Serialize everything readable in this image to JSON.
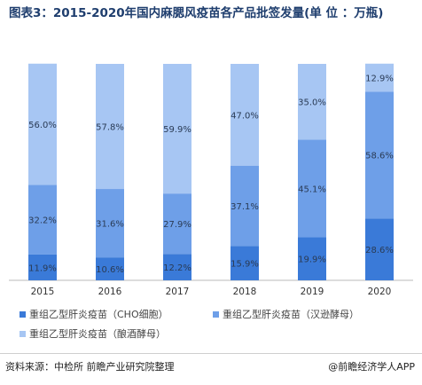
{
  "title": "图表3：2015-2020年国内麻腮风疫苗各产品批签发量(单 位 ：万瓶)",
  "chart_data": {
    "type": "bar",
    "stacked": true,
    "normalized": true,
    "categories": [
      "2015",
      "2016",
      "2017",
      "2018",
      "2019",
      "2020"
    ],
    "series": [
      {
        "name": "重组乙型肝炎疫苗（CHO细胞）",
        "color": "#3a7ad8",
        "values": [
          11.9,
          10.6,
          12.2,
          15.9,
          19.9,
          28.6
        ],
        "labels": [
          "11.9%",
          "10.6%",
          "12.2%",
          "15.9%",
          "19.9%",
          "28.6%"
        ]
      },
      {
        "name": "重组乙型肝炎疫苗（汉逊酵母）",
        "color": "#6e9fe8",
        "values": [
          32.2,
          31.6,
          27.9,
          37.1,
          45.1,
          58.6
        ],
        "labels": [
          "32.2%",
          "31.6%",
          "27.9%",
          "37.1%",
          "45.1%",
          "58.6%"
        ]
      },
      {
        "name": "重组乙型肝炎疫苗（酿酒酵母）",
        "color": "#a7c6f3",
        "values": [
          56.0,
          57.8,
          59.9,
          47.0,
          35.0,
          12.9
        ],
        "labels": [
          "56.0%",
          "57.8%",
          "59.9%",
          "47.0%",
          "35.0%",
          "12.9%"
        ]
      }
    ],
    "ylim": [
      0,
      100
    ]
  },
  "footer": {
    "source": "资料来源：中检所 前瞻产业研究院整理",
    "brand": "@前瞻经济学人APP"
  }
}
